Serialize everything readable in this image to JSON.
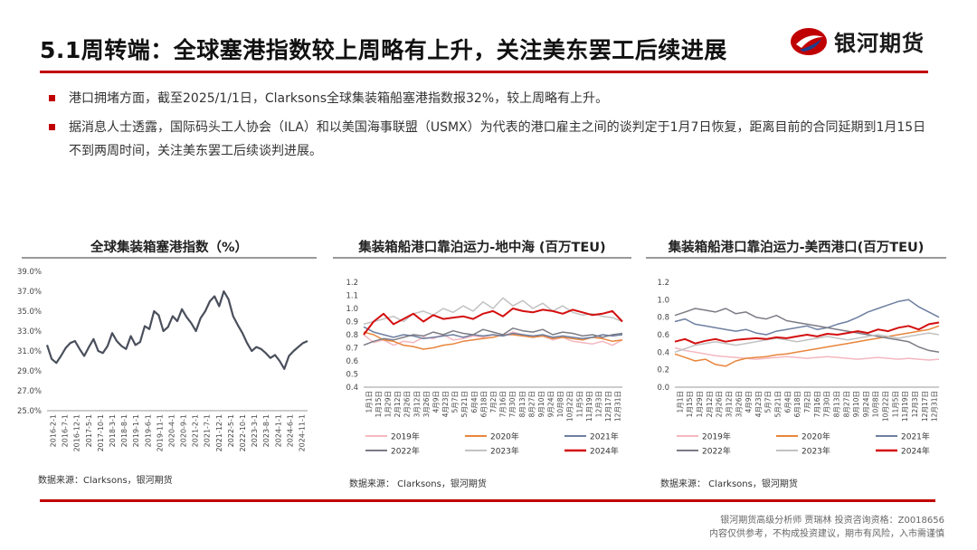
{
  "header": {
    "title": "5.1周转端：全球塞港指数较上周略有上升，关注美东罢工后续进展",
    "logo_text": "银河期货"
  },
  "bullets": [
    "港口拥堵方面，截至2025/1/1日，Clarksons全球集装箱船塞港指数报32%，较上周略有上升。",
    "据消息人士透露，国际码头工人协会（ILA）和以美国海事联盟（USMX）为代表的港口雇主之间的谈判定于1月7日恢复，距离目前的合同延期到1月15日不到两周时间，关注美东罢工后续谈判进展。"
  ],
  "colors": {
    "accent": "#c00000",
    "index_line": "#4a4f5c",
    "2019": "#f4b8c0",
    "2020": "#e8853c",
    "2021": "#6e7fa0",
    "2022": "#7c7c86",
    "2023": "#c2c2c2",
    "2024": "#d40f0f"
  },
  "chart_data": [
    {
      "type": "line",
      "title": "全球集装箱塞港指数（%）",
      "ylim": [
        25,
        39
      ],
      "ytick_labels": [
        "39.0%",
        "37.0%",
        "35.0%",
        "33.0%",
        "31.0%",
        "29.0%",
        "27.0%",
        "25.0%"
      ],
      "x_labels": [
        "2016-2-1",
        "2016-7-1",
        "2016-12-1",
        "2017-5-1",
        "2017-10-1",
        "2018-3-1",
        "2018-8-1",
        "2019-1-1",
        "2019-6-1",
        "2019-11-1",
        "2020-4-1",
        "2020-9-1",
        "2021-2-1",
        "2021-7-1",
        "2021-12-1",
        "2022-5-1",
        "2022-10-1",
        "2023-3-1",
        "2023-8-1",
        "2024-1-1",
        "2024-6-1",
        "2024-11-1"
      ],
      "series": [
        {
          "values": [
            31.6,
            30.2,
            29.8,
            30.5,
            31.3,
            31.8,
            32.0,
            31.2,
            30.5,
            31.4,
            32.2,
            31.0,
            30.8,
            31.5,
            32.8,
            32.0,
            31.5,
            31.2,
            32.5,
            31.6,
            31.9,
            33.5,
            33.2,
            35.0,
            34.6,
            33.0,
            33.4,
            34.5,
            34.0,
            35.2,
            34.4,
            33.8,
            33.0,
            34.3,
            35.0,
            36.0,
            36.5,
            35.5,
            37.0,
            36.2,
            34.5,
            33.6,
            32.8,
            31.8,
            31.0,
            31.4,
            31.2,
            30.8,
            30.3,
            30.6,
            30.0,
            29.2,
            30.5,
            31.0,
            31.4,
            31.8,
            32.0
          ]
        }
      ],
      "source": "数据来源：Clarksons，银河期货"
    },
    {
      "type": "line",
      "title": "集装箱船港口靠泊运力-地中海 (百万TEU)",
      "ylim": [
        0.4,
        1.2
      ],
      "ytick_labels": [
        "1.2",
        "1.1",
        "1.0",
        "0.9",
        "0.8",
        "0.7",
        "0.6",
        "0.5",
        "0.4"
      ],
      "x_labels": [
        "1月1日",
        "1月15日",
        "1月29日",
        "2月12日",
        "2月26日",
        "3月12日",
        "3月26日",
        "4月9日",
        "4月23日",
        "5月7日",
        "5月21日",
        "6月4日",
        "6月18日",
        "7月2日",
        "7月16日",
        "7月30日",
        "8月13日",
        "8月27日",
        "9月10日",
        "9月24日",
        "10月8日",
        "10月22日",
        "11月5日",
        "11月19日",
        "12月3日",
        "12月17日",
        "12月31日"
      ],
      "series": [
        {
          "name": "2019年",
          "values": [
            0.8,
            0.74,
            0.76,
            0.72,
            0.75,
            0.74,
            0.78,
            0.77,
            0.8,
            0.76,
            0.77,
            0.79,
            0.78,
            0.8,
            0.79,
            0.82,
            0.8,
            0.78,
            0.79,
            0.76,
            0.78,
            0.75,
            0.74,
            0.73,
            0.75,
            0.72,
            0.76
          ]
        },
        {
          "name": "2020年",
          "values": [
            0.82,
            0.8,
            0.76,
            0.75,
            0.72,
            0.71,
            0.69,
            0.7,
            0.72,
            0.73,
            0.75,
            0.76,
            0.77,
            0.78,
            0.8,
            0.8,
            0.79,
            0.78,
            0.79,
            0.77,
            0.78,
            0.77,
            0.76,
            0.78,
            0.77,
            0.75,
            0.76
          ]
        },
        {
          "name": "2021年",
          "values": [
            0.86,
            0.82,
            0.8,
            0.78,
            0.8,
            0.79,
            0.77,
            0.78,
            0.79,
            0.8,
            0.78,
            0.8,
            0.79,
            0.8,
            0.79,
            0.81,
            0.8,
            0.79,
            0.8,
            0.78,
            0.79,
            0.78,
            0.77,
            0.78,
            0.8,
            0.79,
            0.8
          ]
        },
        {
          "name": "2022年",
          "values": [
            0.72,
            0.75,
            0.77,
            0.76,
            0.78,
            0.8,
            0.79,
            0.82,
            0.8,
            0.83,
            0.81,
            0.8,
            0.84,
            0.82,
            0.8,
            0.85,
            0.83,
            0.82,
            0.84,
            0.8,
            0.82,
            0.81,
            0.79,
            0.8,
            0.78,
            0.8,
            0.81
          ]
        },
        {
          "name": "2023年",
          "values": [
            0.88,
            0.9,
            0.92,
            0.94,
            0.9,
            0.96,
            0.98,
            0.95,
            1.0,
            0.97,
            1.02,
            0.98,
            1.05,
            1.0,
            1.08,
            1.02,
            1.06,
            1.0,
            1.04,
            0.98,
            1.02,
            0.97,
            0.95,
            0.96,
            0.94,
            0.93,
            0.9
          ]
        },
        {
          "name": "2024年",
          "values": [
            0.8,
            0.9,
            0.96,
            0.88,
            0.92,
            0.96,
            0.9,
            0.95,
            0.92,
            0.93,
            0.94,
            0.92,
            0.96,
            0.98,
            0.94,
            1.0,
            0.98,
            0.97,
            0.99,
            0.98,
            0.96,
            0.99,
            0.97,
            0.95,
            0.96,
            0.98,
            0.9
          ]
        }
      ],
      "source": "数据来源：  Clarksons，银河期货"
    },
    {
      "type": "line",
      "title": "集装箱船港口靠泊运力-美西港口(百万TEU)",
      "ylim": [
        0.0,
        1.2
      ],
      "ytick_labels": [
        "1.2",
        "1.0",
        "0.8",
        "0.6",
        "0.4",
        "0.2",
        "0.0"
      ],
      "x_labels": [
        "1月1日",
        "1月15日",
        "1月29日",
        "2月12日",
        "2月26日",
        "3月12日",
        "3月26日",
        "4月9日",
        "4月23日",
        "5月7日",
        "5月21日",
        "6月4日",
        "6月18日",
        "7月2日",
        "7月16日",
        "7月30日",
        "8月13日",
        "8月27日",
        "9月10日",
        "9月24日",
        "10月8日",
        "10月22日",
        "11月5日",
        "11月19日",
        "12月3日",
        "12月17日",
        "12月31日"
      ],
      "series": [
        {
          "name": "2019年",
          "values": [
            0.45,
            0.42,
            0.4,
            0.38,
            0.36,
            0.35,
            0.34,
            0.33,
            0.32,
            0.33,
            0.34,
            0.35,
            0.34,
            0.33,
            0.34,
            0.35,
            0.34,
            0.33,
            0.32,
            0.33,
            0.34,
            0.33,
            0.32,
            0.33,
            0.32,
            0.31,
            0.32
          ]
        },
        {
          "name": "2020年",
          "values": [
            0.38,
            0.34,
            0.3,
            0.32,
            0.26,
            0.24,
            0.3,
            0.33,
            0.34,
            0.35,
            0.37,
            0.38,
            0.4,
            0.42,
            0.44,
            0.46,
            0.48,
            0.5,
            0.52,
            0.54,
            0.56,
            0.58,
            0.6,
            0.62,
            0.64,
            0.66,
            0.7
          ]
        },
        {
          "name": "2021年",
          "values": [
            0.75,
            0.78,
            0.72,
            0.7,
            0.68,
            0.66,
            0.64,
            0.66,
            0.62,
            0.6,
            0.64,
            0.66,
            0.68,
            0.7,
            0.66,
            0.68,
            0.72,
            0.75,
            0.8,
            0.86,
            0.9,
            0.94,
            0.98,
            1.0,
            0.92,
            0.86,
            0.8
          ]
        },
        {
          "name": "2022年",
          "values": [
            0.82,
            0.86,
            0.9,
            0.88,
            0.86,
            0.9,
            0.84,
            0.86,
            0.8,
            0.78,
            0.82,
            0.76,
            0.74,
            0.72,
            0.7,
            0.68,
            0.66,
            0.64,
            0.62,
            0.6,
            0.58,
            0.56,
            0.54,
            0.52,
            0.46,
            0.42,
            0.4
          ]
        },
        {
          "name": "2023年",
          "values": [
            0.4,
            0.44,
            0.48,
            0.5,
            0.52,
            0.5,
            0.48,
            0.5,
            0.52,
            0.54,
            0.56,
            0.54,
            0.52,
            0.54,
            0.56,
            0.58,
            0.56,
            0.54,
            0.56,
            0.58,
            0.6,
            0.58,
            0.56,
            0.58,
            0.6,
            0.62,
            0.6
          ]
        },
        {
          "name": "2024年",
          "values": [
            0.52,
            0.55,
            0.5,
            0.53,
            0.55,
            0.52,
            0.54,
            0.55,
            0.56,
            0.55,
            0.57,
            0.56,
            0.58,
            0.6,
            0.58,
            0.61,
            0.6,
            0.62,
            0.64,
            0.62,
            0.66,
            0.64,
            0.68,
            0.7,
            0.66,
            0.72,
            0.74
          ]
        }
      ],
      "source": "数据来源：  Clarksons，银河期货"
    }
  ],
  "footer": {
    "line1": "银河期货高级分析师 贾瑞林 投资咨询资格：Z0018656",
    "line2": "内容仅供参考，不构成投资建议，期市有风险，入市需谨慎"
  }
}
